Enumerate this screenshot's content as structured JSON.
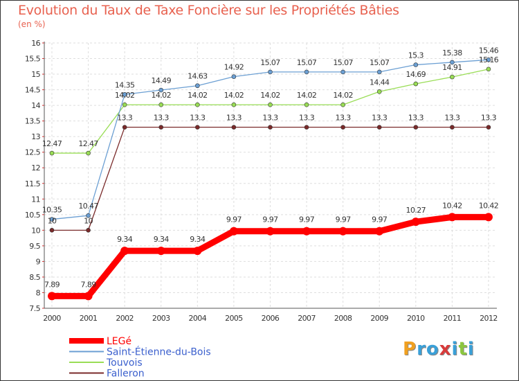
{
  "title": "Evolution du Taux de Taxe Foncière sur les Propriétés Bâties",
  "unit_label": "(en %)",
  "logo": {
    "text": "Proxiti",
    "letters": [
      {
        "ch": "P",
        "color": "#f0a020"
      },
      {
        "ch": "r",
        "color": "#3aa0d8"
      },
      {
        "ch": "o",
        "color": "#3aa0d8"
      },
      {
        "ch": "x",
        "color": "#d83a3a"
      },
      {
        "ch": "i",
        "color": "#3aa0d8"
      },
      {
        "ch": "t",
        "color": "#8cc63f"
      },
      {
        "ch": "i",
        "color": "#3aa0d8"
      }
    ]
  },
  "chart_data": {
    "type": "line",
    "title": "Evolution du Taux de Taxe Foncière sur les Propriétés Bâties",
    "ylabel": "(en %)",
    "xlabel": "",
    "ylim": [
      7.5,
      16
    ],
    "yticks": [
      "7.5",
      "8",
      "8.5",
      "9",
      "9.5",
      "10",
      "10.5",
      "11",
      "11.5",
      "12",
      "12.5",
      "13",
      "13.5",
      "14",
      "14.5",
      "15",
      "15.5",
      "16"
    ],
    "categories": [
      "2000",
      "2001",
      "2002",
      "2003",
      "2004",
      "2005",
      "2006",
      "2007",
      "2008",
      "2009",
      "2010",
      "2011",
      "2012"
    ],
    "series": [
      {
        "name": "LEGé",
        "color": "#ff0000",
        "legend_color": "#ff0000",
        "labels_below": false,
        "values": [
          7.89,
          7.89,
          9.34,
          9.34,
          9.34,
          9.97,
          9.97,
          9.97,
          9.97,
          9.97,
          10.27,
          10.42,
          10.42
        ],
        "labels": [
          "7.89",
          "7.89",
          "9.34",
          "9.34",
          "9.34",
          "9.97",
          "9.97",
          "9.97",
          "9.97",
          "9.97",
          "10.27",
          "10.42",
          "10.42"
        ]
      },
      {
        "name": "Saint-Étienne-du-Bois",
        "color": "#6b9fd3",
        "legend_color": "#3a5fcd",
        "values": [
          10.35,
          10.47,
          14.35,
          14.49,
          14.63,
          14.92,
          15.07,
          15.07,
          15.07,
          15.07,
          15.3,
          15.38,
          15.46
        ],
        "labels": [
          "10.35",
          "10.47",
          "14.35",
          "14.49",
          "14.63",
          "14.92",
          "15.07",
          "15.07",
          "15.07",
          "15.07",
          "15.3",
          "15.38",
          "15.46"
        ]
      },
      {
        "name": "Touvois",
        "color": "#99dd55",
        "legend_color": "#3a5fcd",
        "values": [
          12.47,
          12.47,
          14.02,
          14.02,
          14.02,
          14.02,
          14.02,
          14.02,
          14.02,
          14.44,
          14.69,
          14.91,
          15.16
        ],
        "labels": [
          "12.47",
          "12.47",
          "14.02",
          "14.02",
          "14.02",
          "14.02",
          "14.02",
          "14.02",
          "14.02",
          "14.44",
          "14.69",
          "14.91",
          "15.16"
        ]
      },
      {
        "name": "Falleron",
        "color": "#7a2a2a",
        "legend_color": "#3a5fcd",
        "values": [
          10,
          10,
          13.3,
          13.3,
          13.3,
          13.3,
          13.3,
          13.3,
          13.3,
          13.3,
          13.3,
          13.3,
          13.3
        ],
        "labels": [
          "10",
          "10",
          "13.3",
          "13.3",
          "13.3",
          "13.3",
          "13.3",
          "13.3",
          "13.3",
          "13.3",
          "13.3",
          "13.3",
          "13.3"
        ]
      }
    ],
    "grid": true,
    "legend": "bottom-left"
  }
}
